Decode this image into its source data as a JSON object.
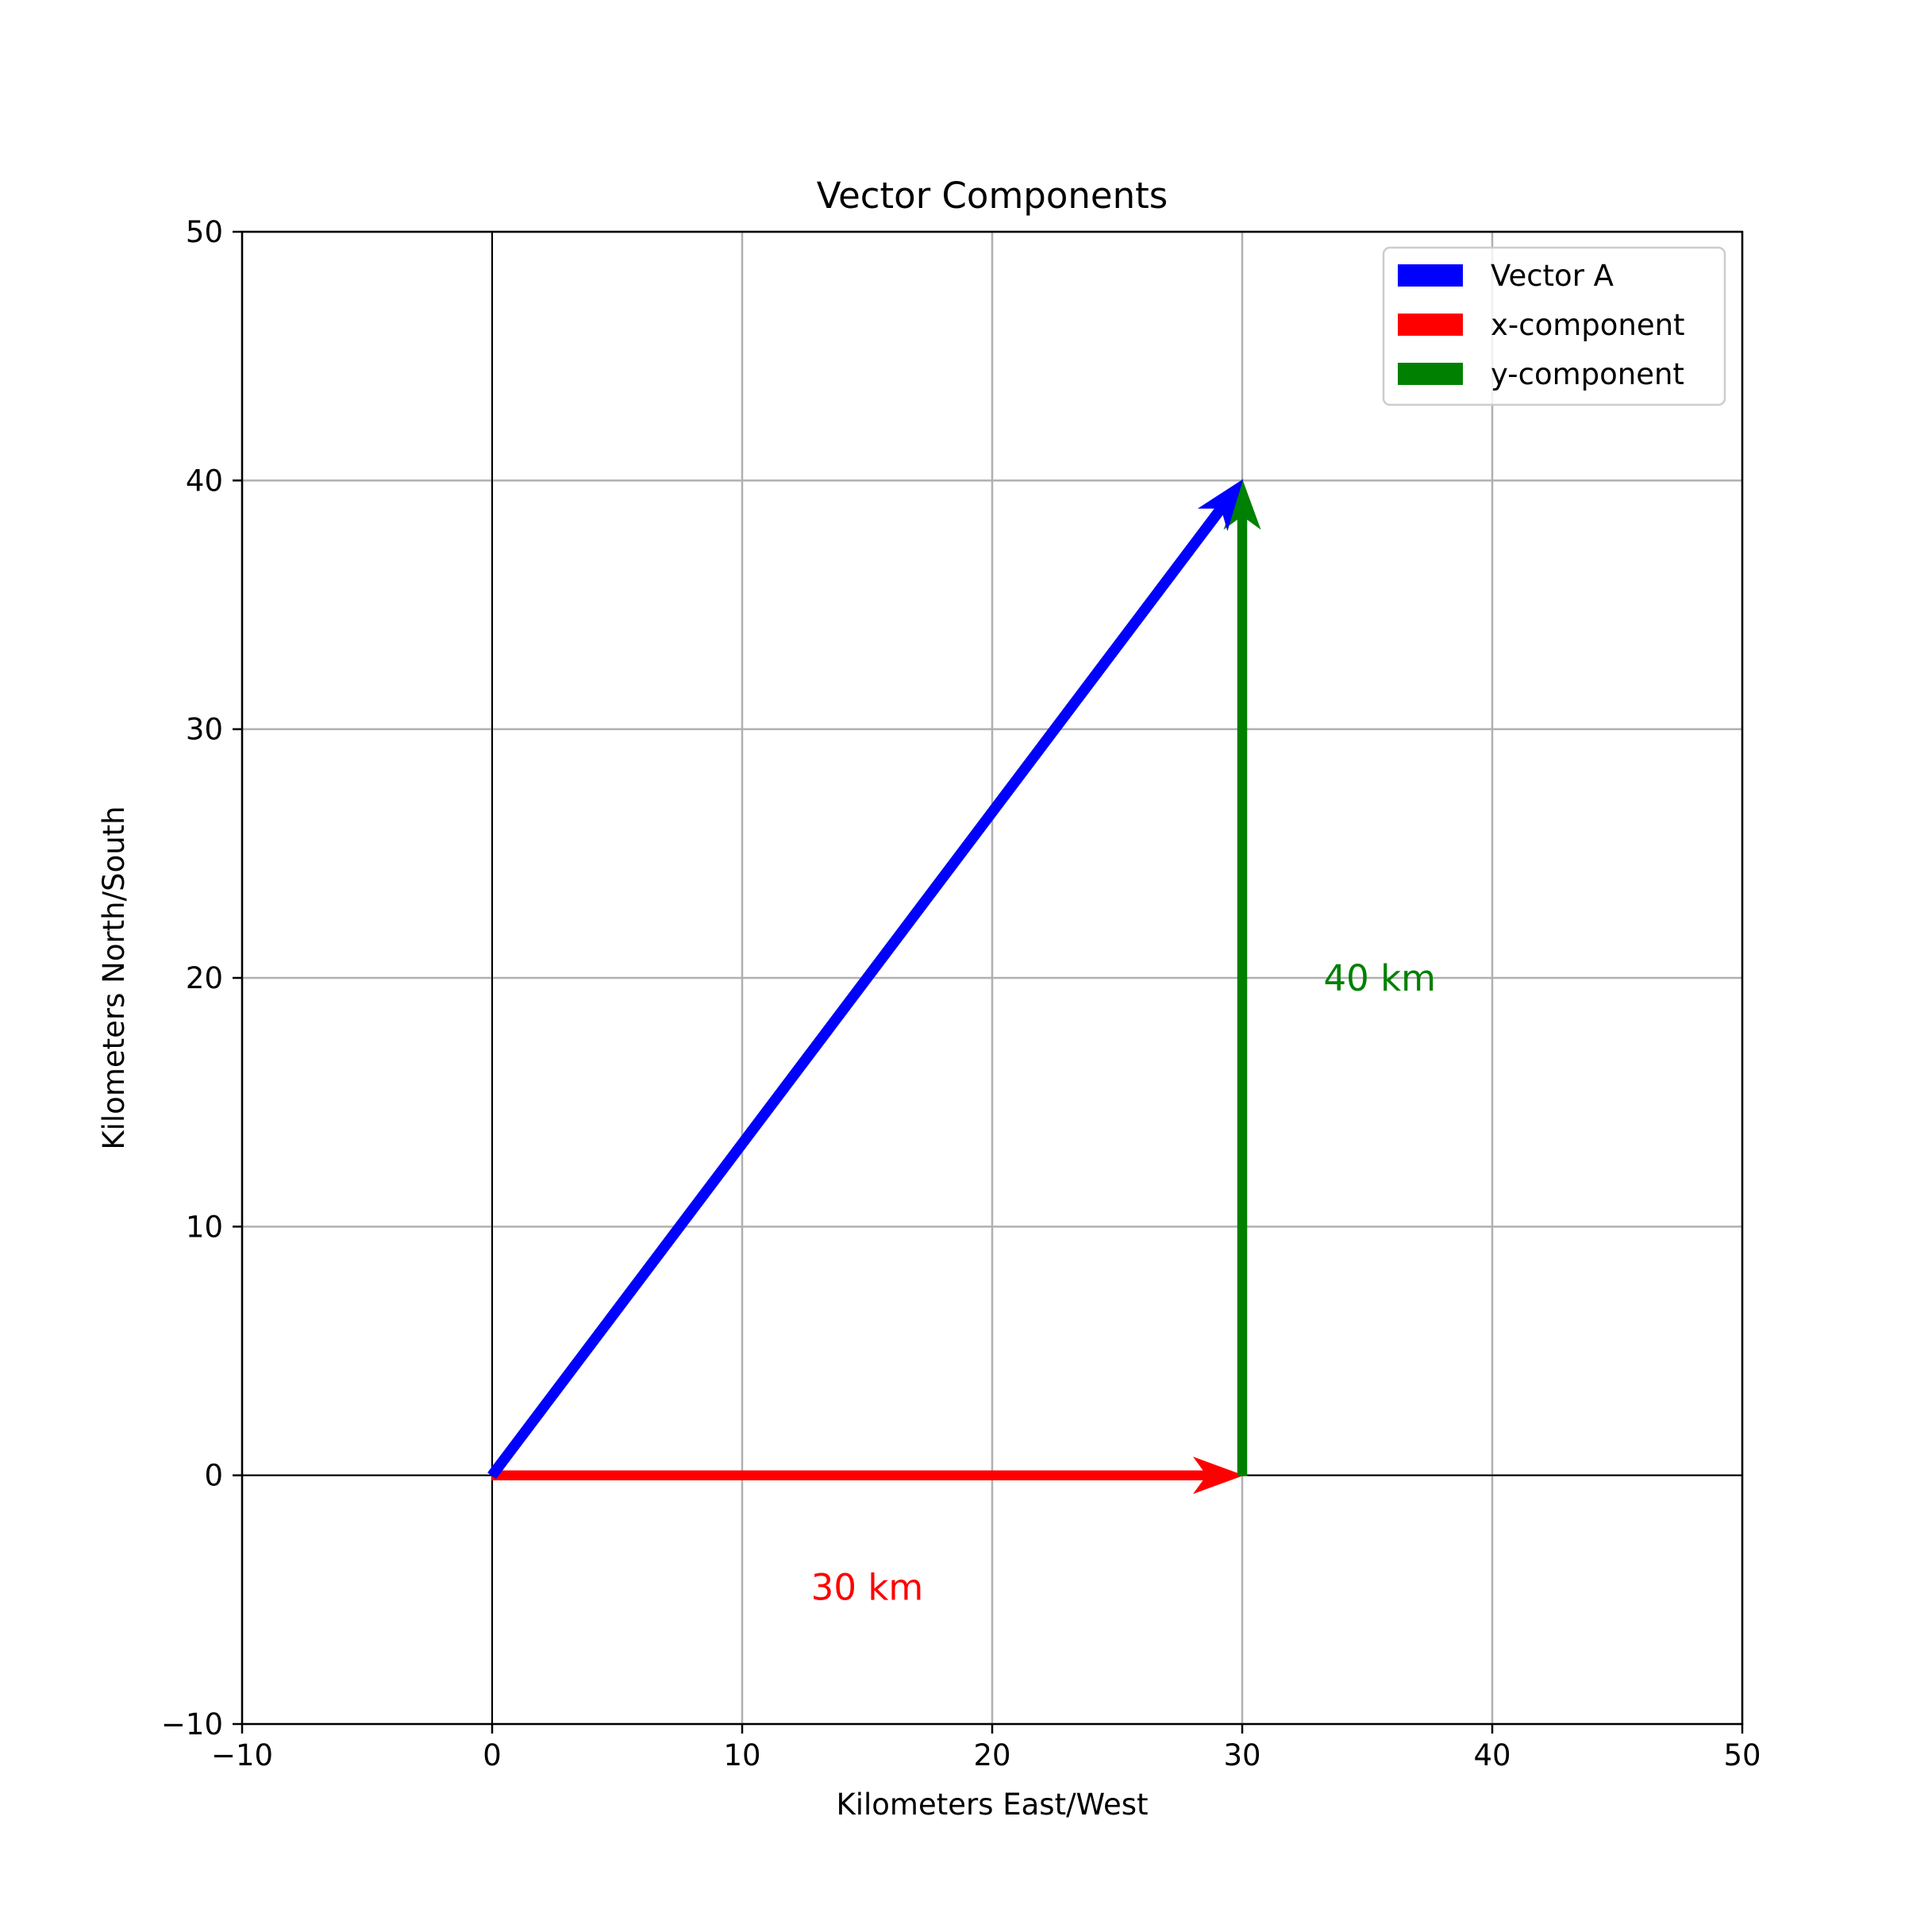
{
  "chart_data": {
    "type": "vector",
    "title": "Vector Components",
    "xlabel": "Kilometers East/West",
    "ylabel": "Kilometers North/South",
    "xlim": [
      -10,
      50
    ],
    "ylim": [
      -10,
      50
    ],
    "xticks": [
      -10,
      0,
      10,
      20,
      30,
      40,
      50
    ],
    "yticks": [
      -10,
      0,
      10,
      20,
      30,
      40,
      50
    ],
    "xtick_labels": [
      "−10",
      "0",
      "10",
      "20",
      "30",
      "40",
      "50"
    ],
    "ytick_labels": [
      "−10",
      "0",
      "10",
      "20",
      "30",
      "40",
      "50"
    ],
    "grid": true,
    "legend_position": "top-right",
    "series": [
      {
        "name": "Vector A",
        "color": "#0000ff",
        "x0": 0,
        "y0": 0,
        "x1": 30,
        "y1": 40
      },
      {
        "name": "x-component",
        "color": "#ff0000",
        "x0": 0,
        "y0": 0,
        "x1": 30,
        "y1": 0
      },
      {
        "name": "y-component",
        "color": "#008000",
        "x0": 30,
        "y0": 0,
        "x1": 30,
        "y1": 40
      }
    ],
    "annotations": [
      {
        "text": "30 km",
        "color": "#ff0000",
        "x": 15,
        "y": -4.5
      },
      {
        "text": "40 km",
        "color": "#008000",
        "x": 35.5,
        "y": 20
      }
    ]
  }
}
